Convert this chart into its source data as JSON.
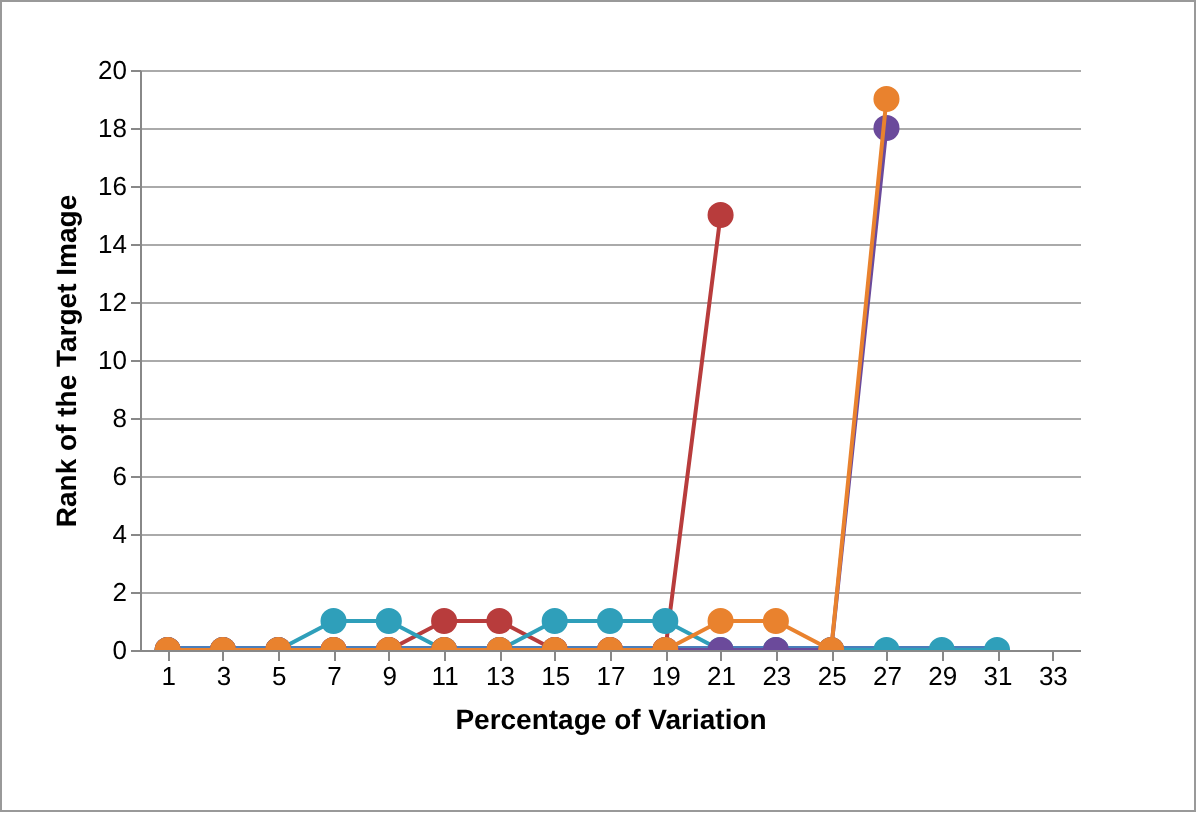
{
  "chart_data": {
    "type": "line",
    "xlabel": "Percentage of Variation",
    "ylabel": "Rank of the Target Image",
    "x": [
      1,
      3,
      5,
      7,
      9,
      11,
      13,
      15,
      17,
      19,
      21,
      23,
      25,
      27,
      29,
      31
    ],
    "xlim": [
      0,
      34
    ],
    "xticks": [
      1,
      3,
      5,
      7,
      9,
      11,
      13,
      15,
      17,
      19,
      21,
      23,
      25,
      27,
      29,
      31,
      33
    ],
    "ylim": [
      0,
      20
    ],
    "yticks": [
      0,
      2,
      4,
      6,
      8,
      10,
      12,
      14,
      16,
      18,
      20
    ],
    "grid": "y",
    "legend": false,
    "series": [
      {
        "color": "#4a7ebb",
        "marker": "diamond",
        "values": [
          0,
          0,
          0,
          0,
          0,
          0,
          0,
          0,
          0,
          0,
          0,
          0,
          0,
          0,
          0,
          0
        ]
      },
      {
        "color": "#b83c3c",
        "marker": "circle",
        "values": [
          0,
          0,
          0,
          0,
          0,
          1,
          1,
          0,
          0,
          0,
          15,
          null,
          null,
          null,
          null,
          null
        ]
      },
      {
        "color": "#2f9fba",
        "marker": "circle",
        "values": [
          0,
          0,
          0,
          1,
          1,
          0,
          0,
          1,
          1,
          1,
          0,
          0,
          0,
          0,
          0,
          0
        ]
      },
      {
        "color": "#6b4a9b",
        "marker": "circle",
        "values": [
          0,
          0,
          0,
          0,
          0,
          0,
          0,
          0,
          0,
          0,
          0,
          0,
          0,
          18,
          null,
          null
        ]
      },
      {
        "color": "#e9822e",
        "marker": "circle",
        "values": [
          0,
          0,
          0,
          0,
          0,
          0,
          0,
          0,
          0,
          0,
          1,
          1,
          0,
          19,
          null,
          null
        ]
      }
    ]
  }
}
